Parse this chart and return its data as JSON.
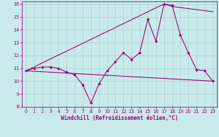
{
  "xlabel": "Windchill (Refroidissement éolien,°C)",
  "bg_color": "#c8eaea",
  "line_color": "#990077",
  "grid_color": "#aacccc",
  "xlim": [
    -0.5,
    23.5
  ],
  "ylim": [
    8,
    16.2
  ],
  "xticks": [
    0,
    1,
    2,
    3,
    4,
    5,
    6,
    7,
    8,
    9,
    10,
    11,
    12,
    13,
    14,
    15,
    16,
    17,
    18,
    19,
    20,
    21,
    22,
    23
  ],
  "yticks": [
    8,
    9,
    10,
    11,
    12,
    13,
    14,
    15,
    16
  ],
  "line1_x": [
    0,
    1,
    2,
    3,
    4,
    5,
    6,
    7,
    8,
    9,
    10,
    11,
    12,
    13,
    14,
    15,
    16,
    17,
    18,
    19,
    20,
    21,
    22,
    23
  ],
  "line1_y": [
    10.8,
    11.0,
    11.1,
    11.1,
    11.0,
    10.7,
    10.5,
    9.7,
    8.3,
    9.8,
    10.8,
    11.5,
    12.2,
    11.7,
    12.2,
    14.8,
    13.1,
    16.0,
    15.9,
    13.6,
    12.2,
    10.9,
    10.8,
    10.0
  ],
  "line2_x": [
    0,
    23
  ],
  "line2_y": [
    10.8,
    10.0
  ],
  "line3_x": [
    0,
    17,
    18,
    23
  ],
  "line3_y": [
    10.8,
    16.0,
    15.8,
    15.4
  ]
}
